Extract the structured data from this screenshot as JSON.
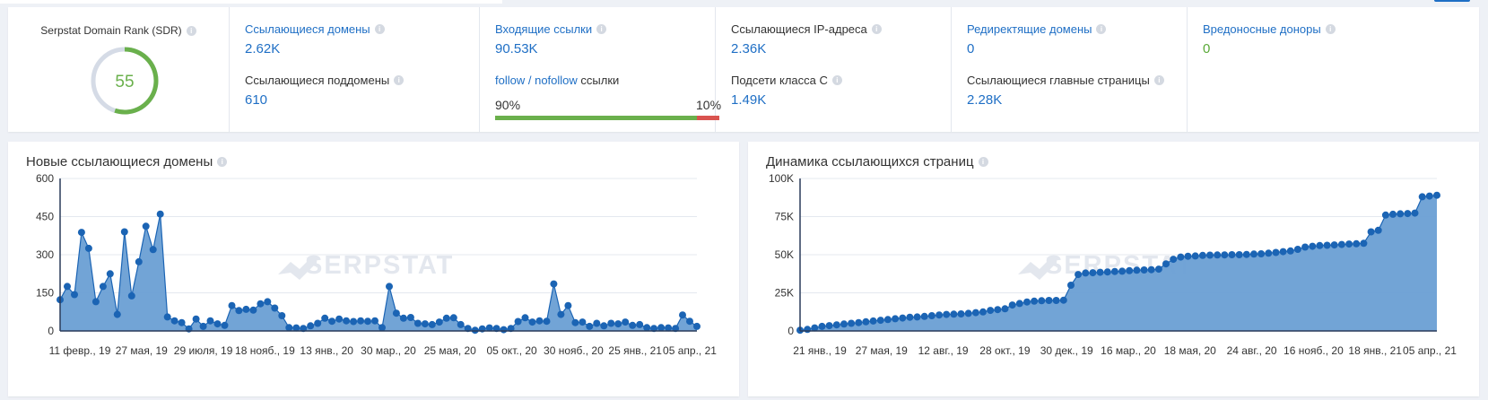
{
  "stats": {
    "sdr": {
      "label": "Serpstat Domain Rank (SDR)",
      "value": "55",
      "gauge_fraction": 0.55
    },
    "referring_domains": {
      "label": "Ссылающиеся домены",
      "value": "2.62K"
    },
    "referring_subdomains": {
      "label": "Ссылающиеся поддомены",
      "value": "610"
    },
    "inbound_links": {
      "label": "Входящие ссылки",
      "value": "90.53K"
    },
    "follow_nofollow": {
      "follow": "follow",
      "sep": " / ",
      "nofollow": "nofollow",
      "suffix": " ссылки",
      "follow_pct": "90%",
      "nofollow_pct": "10%",
      "follow_fraction": 0.9
    },
    "referring_ips": {
      "label": "Ссылающиеся IP-адреса",
      "value": "2.36K"
    },
    "subnets_c": {
      "label": "Подсети класса С",
      "value": "1.49K"
    },
    "redirect_domains": {
      "label": "Редиректящие домены",
      "value": "0"
    },
    "referring_main_pages": {
      "label": "Ссылающиеся главные страницы",
      "value": "2.28K"
    },
    "malicious_donors": {
      "label": "Вредоносные доноры",
      "value": "0"
    }
  },
  "watermark": "SERPSTAT",
  "colors": {
    "accent": "#1f6fc5",
    "green": "#5aa938",
    "area": "#6a9fd4",
    "line": "#1b64b4"
  },
  "chart_data": [
    {
      "type": "area",
      "title": "Новые ссылающиеся домены",
      "ylim": [
        0,
        600
      ],
      "yticks": [
        "600",
        "450",
        "300",
        "150",
        "0"
      ],
      "ytick_values": [
        600,
        450,
        300,
        150,
        0
      ],
      "xtick_labels": [
        "11 февр., 19",
        "27 мая, 19",
        "29 июля, 19",
        "18 нояб., 19",
        "13 янв., 20",
        "30 мар., 20",
        "25 мая, 20",
        "05 окт., 20",
        "30 нояб., 20",
        "25 янв., 21",
        "05 апр., 21"
      ],
      "values": [
        123,
        175,
        143,
        388,
        325,
        115,
        175,
        225,
        65,
        390,
        138,
        272,
        412,
        320,
        460,
        55,
        40,
        33,
        8,
        47,
        18,
        40,
        28,
        22,
        100,
        80,
        85,
        82,
        107,
        115,
        90,
        60,
        13,
        12,
        10,
        20,
        30,
        50,
        38,
        47,
        40,
        37,
        40,
        38,
        40,
        13,
        175,
        70,
        50,
        53,
        30,
        28,
        25,
        35,
        50,
        52,
        25,
        10,
        3,
        8,
        12,
        10,
        5,
        10,
        37,
        52,
        35,
        40,
        38,
        185,
        65,
        100,
        33,
        35,
        18,
        30,
        20,
        30,
        28,
        35,
        22,
        25,
        13,
        10,
        13,
        12,
        10,
        63,
        38,
        18
      ]
    },
    {
      "type": "area",
      "title": "Динамика ссылающихся страниц",
      "ylim": [
        0,
        100000
      ],
      "yticks": [
        "100K",
        "75K",
        "50K",
        "25K",
        "0"
      ],
      "ytick_values": [
        100000,
        75000,
        50000,
        25000,
        0
      ],
      "xtick_labels": [
        "21 янв., 19",
        "27 мая, 19",
        "12 авг., 19",
        "28 окт., 19",
        "30 дек., 19",
        "16 мар., 20",
        "18 мая, 20",
        "24 авг., 20",
        "16 нояб., 20",
        "18 янв., 21",
        "05 апр., 21"
      ],
      "values": [
        500,
        1000,
        2000,
        3000,
        3500,
        4000,
        4500,
        5000,
        5500,
        6000,
        6500,
        7000,
        7500,
        8000,
        8500,
        9000,
        9200,
        9500,
        10000,
        10500,
        10800,
        11000,
        11200,
        11500,
        12000,
        12500,
        13500,
        14000,
        14500,
        17000,
        18000,
        19000,
        19500,
        19800,
        20000,
        20000,
        20200,
        30000,
        37000,
        38000,
        38200,
        38500,
        38700,
        39000,
        39200,
        39500,
        39800,
        40000,
        40200,
        40500,
        44000,
        47000,
        48500,
        49000,
        49200,
        49500,
        49700,
        49800,
        49900,
        50000,
        50000,
        50200,
        50400,
        50600,
        51000,
        51500,
        52000,
        52500,
        53500,
        55000,
        55500,
        56000,
        56200,
        56400,
        56700,
        57000,
        57200,
        57500,
        65000,
        66000,
        76000,
        76500,
        76800,
        77000,
        77300,
        88000,
        88500,
        89000
      ]
    }
  ]
}
